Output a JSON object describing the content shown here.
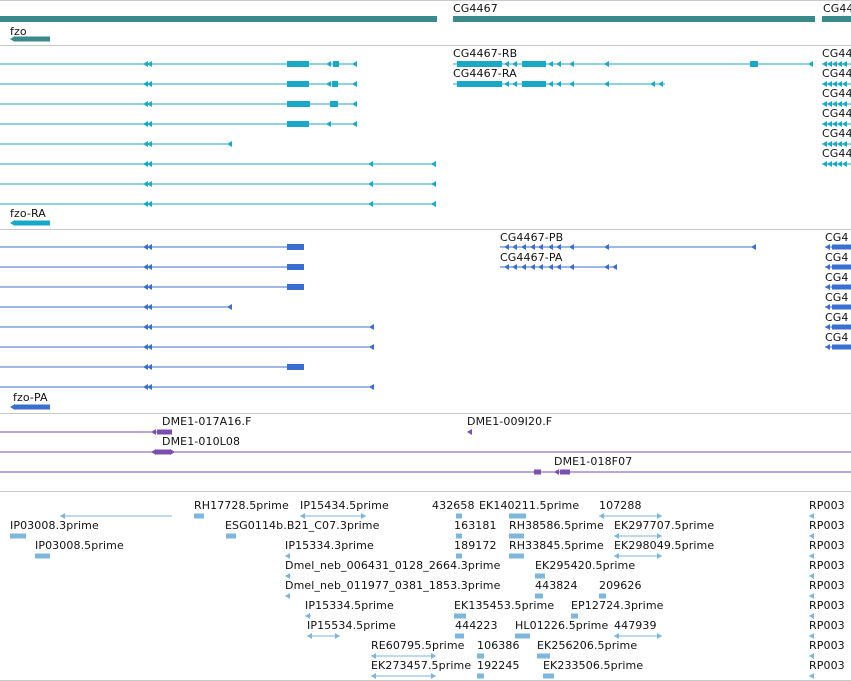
{
  "colors": {
    "gene": "#3a8a8c",
    "transcript": "#1ba8c8",
    "protein": "#3a6fcf",
    "clone": "#7a4fb0",
    "est": "#7fb6dc",
    "separator": "#c8c8c8"
  },
  "tracks": {
    "gene": {
      "labels": [
        "CG4467",
        "CG44",
        "fzo"
      ]
    },
    "transcripts": {
      "labels": [
        "CG4467-RB",
        "CG4467-RA",
        "CG44",
        "CG44",
        "CG44",
        "CG44",
        "CG44",
        "CG44",
        "fzo-RA"
      ]
    },
    "proteins": {
      "labels": [
        "CG4467-PB",
        "CG4467-PA",
        "CG4",
        "CG4",
        "CG4",
        "CG4",
        "CG4",
        "CG4",
        "fzo-PA"
      ]
    },
    "clones": {
      "labels": [
        "DME1-017A16.F",
        "DME1-009I20.F",
        "DME1-010L08",
        "DME1-018F07"
      ]
    },
    "ests": {
      "labels": [
        "RH17728.5prime",
        "IP15434.5prime",
        "432658",
        "EK140211.5prime",
        "107288",
        "RP003",
        "IP03008.3prime",
        "ESG0114b.B21_C07.3prime",
        "163181",
        "RH38586.5prime",
        "EK297707.5prime",
        "RP003",
        "IP03008.5prime",
        "IP15334.3prime",
        "189172",
        "RH33845.5prime",
        "EK298049.5prime",
        "RP003",
        "Dmel_neb_006431_0128_2664.3prime",
        "EK295420.5prime",
        "RP003",
        "Dmel_neb_011977_0381_1853.3prime",
        "443824",
        "209626",
        "RP003",
        "IP15334.5prime",
        "EK135453.5prime",
        "EP12724.3prime",
        "RP003",
        "IP15534.5prime",
        "444223",
        "HL01226.5prime",
        "447939",
        "RP003",
        "RE60795.5prime",
        "106386",
        "EK256206.5prime",
        "RP003",
        "EK273457.5prime",
        "192245",
        "EK233506.5prime",
        "RP003"
      ]
    }
  }
}
